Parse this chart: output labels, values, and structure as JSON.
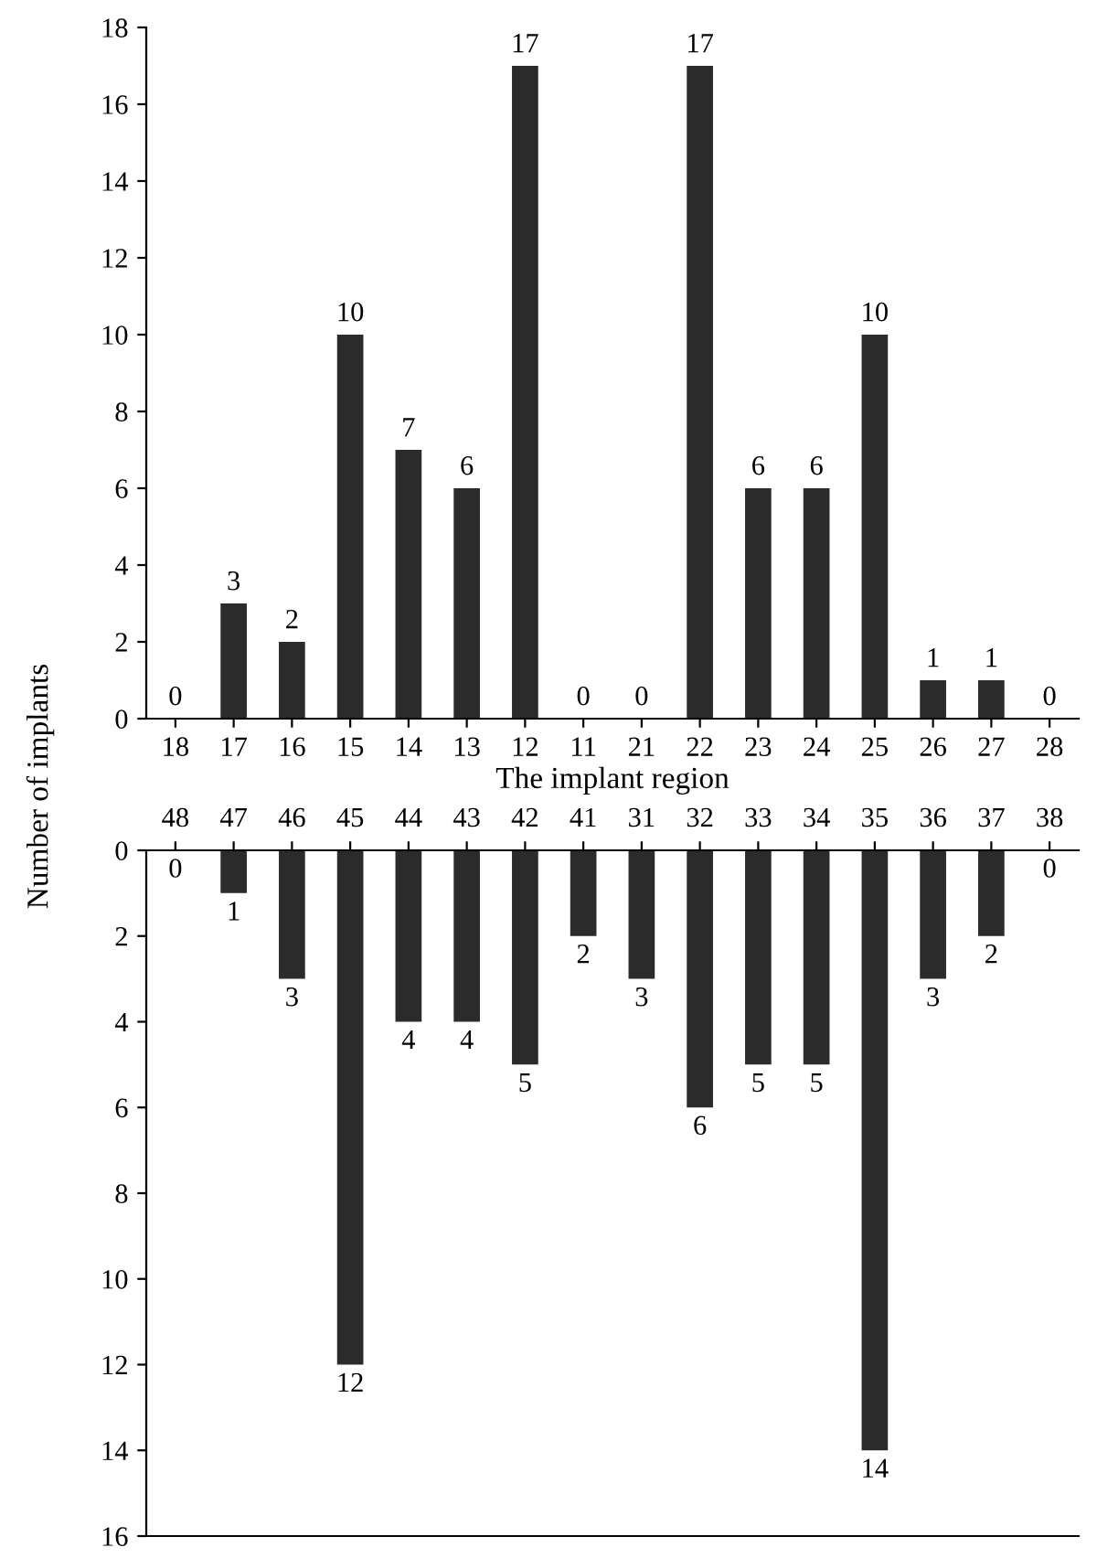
{
  "chart_data": [
    {
      "type": "bar",
      "xlabel": "The implant region",
      "ylabel": "Number of implants",
      "categories": [
        "18",
        "17",
        "16",
        "15",
        "14",
        "13",
        "12",
        "11",
        "21",
        "22",
        "23",
        "24",
        "25",
        "26",
        "27",
        "28"
      ],
      "values": [
        0,
        3,
        2,
        10,
        7,
        6,
        17,
        0,
        0,
        17,
        6,
        6,
        10,
        1,
        1,
        0
      ],
      "color": "#2b2b2b",
      "ylim": [
        0,
        18
      ],
      "yticks": [
        0,
        2,
        4,
        6,
        8,
        10,
        12,
        14,
        16,
        18
      ],
      "data_labels": true,
      "grid": false,
      "legend": false
    },
    {
      "type": "bar",
      "categories": [
        "48",
        "47",
        "46",
        "45",
        "44",
        "43",
        "42",
        "41",
        "31",
        "32",
        "33",
        "34",
        "35",
        "36",
        "37",
        "38"
      ],
      "values": [
        0,
        1,
        3,
        12,
        4,
        4,
        5,
        2,
        3,
        6,
        5,
        5,
        14,
        3,
        2,
        0
      ],
      "color": "#2b2b2b",
      "ylim": [
        16,
        0
      ],
      "yticks": [
        0,
        2,
        4,
        6,
        8,
        10,
        12,
        14,
        16
      ],
      "data_labels": true,
      "grid": false,
      "legend": false
    }
  ]
}
